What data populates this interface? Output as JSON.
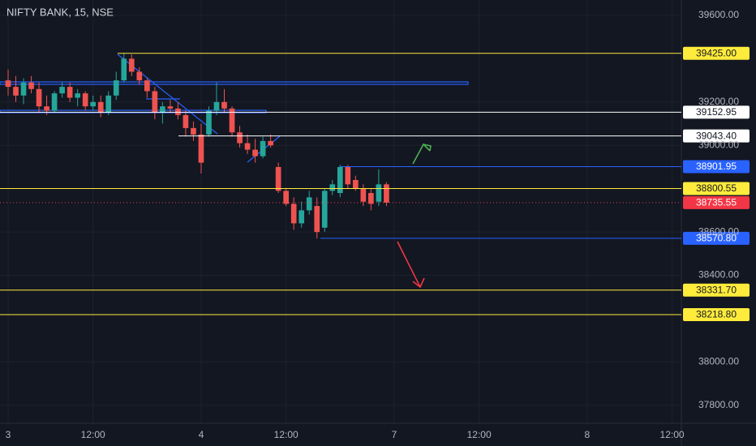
{
  "chart_data": {
    "type": "candlestick",
    "title": "NIFTY BANK, 15, NSE",
    "x": [
      0,
      1,
      2,
      3,
      4,
      5,
      6,
      7,
      8,
      9,
      10,
      11,
      12,
      13,
      14,
      15,
      16,
      17,
      18,
      19,
      20,
      21,
      22,
      23,
      24,
      25,
      26,
      27,
      28,
      29,
      30,
      31,
      32,
      33,
      34,
      35,
      36,
      37,
      38,
      39,
      40,
      41,
      42,
      43,
      44,
      45,
      46,
      47,
      48,
      49
    ],
    "open": [
      39300,
      39270,
      39230,
      39290,
      39260,
      39180,
      39160,
      39240,
      39270,
      39220,
      39240,
      39180,
      39200,
      39150,
      39230,
      39300,
      39400,
      39340,
      39300,
      39250,
      39150,
      39180,
      39170,
      39140,
      39080,
      39050,
      39050,
      39160,
      39200,
      39170,
      39060,
      39010,
      38980,
      38950,
      39020,
      38900,
      38790,
      38730,
      38640,
      38700,
      38720,
      38620,
      38790,
      38780,
      38900,
      38840,
      38800,
      38780,
      38740,
      38820
    ],
    "high": [
      39350,
      39320,
      39310,
      39320,
      39290,
      39230,
      39250,
      39290,
      39290,
      39260,
      39250,
      39230,
      39230,
      39250,
      39340,
      39425,
      39420,
      39360,
      39310,
      39270,
      39200,
      39210,
      39200,
      39160,
      39110,
      39100,
      39180,
      39290,
      39260,
      39180,
      39090,
      39050,
      39030,
      39040,
      39050,
      38920,
      38800,
      38760,
      38740,
      38790,
      38760,
      38800,
      38840,
      38910,
      38910,
      38860,
      38820,
      38800,
      38890,
      38830
    ],
    "low": [
      39230,
      39200,
      39190,
      39240,
      39150,
      39140,
      39150,
      39220,
      39200,
      39180,
      39160,
      39160,
      39130,
      39140,
      39210,
      39290,
      39320,
      39280,
      39220,
      39120,
      39100,
      39150,
      39120,
      39040,
      39020,
      38870,
      39040,
      39140,
      39150,
      39040,
      38990,
      38960,
      38920,
      38940,
      38990,
      38780,
      38720,
      38610,
      38620,
      38680,
      38570,
      38600,
      38770,
      38760,
      38800,
      38790,
      38720,
      38700,
      38720,
      38720
    ],
    "close": [
      39270,
      39230,
      39290,
      39260,
      39180,
      39160,
      39240,
      39270,
      39220,
      39240,
      39180,
      39200,
      39150,
      39230,
      39300,
      39400,
      39340,
      39300,
      39250,
      39150,
      39180,
      39170,
      39140,
      39080,
      39050,
      38920,
      39160,
      39200,
      39170,
      39060,
      39010,
      38980,
      38950,
      39020,
      39000,
      38790,
      38730,
      38640,
      38700,
      38760,
      38600,
      38790,
      38820,
      38900,
      38820,
      38800,
      38740,
      38730,
      38820,
      38735.55
    ],
    "up_color": "#26a69a",
    "down_color": "#ef5350",
    "xlim": [
      -1.05,
      87.2
    ],
    "xticks": [
      {
        "value": 0,
        "label": "3"
      },
      {
        "value": 11,
        "label": "12:00"
      },
      {
        "value": 25,
        "label": "4"
      },
      {
        "value": 36,
        "label": "12:00"
      },
      {
        "value": 50,
        "label": "7"
      },
      {
        "value": 61,
        "label": "12:00"
      },
      {
        "value": 75,
        "label": "8"
      },
      {
        "value": 86,
        "label": "12:00"
      }
    ],
    "ylim": [
      37717,
      39671
    ],
    "yticks": [
      {
        "value": 39600,
        "label": "39600.00"
      },
      {
        "value": 39200,
        "label": "39200.00"
      },
      {
        "value": 39000,
        "label": "39000.00"
      },
      {
        "value": 38600,
        "label": "38600.00"
      },
      {
        "value": 38400,
        "label": "38400.00"
      },
      {
        "value": 38000,
        "label": "38000.00"
      },
      {
        "value": 37800,
        "label": "37800.00"
      }
    ],
    "grid": true,
    "levels": [
      {
        "value": 39425,
        "label": "39425.00",
        "color": "#ffeb3b"
      },
      {
        "value": 39152.95,
        "label": "39152.95",
        "color": "#ffffff"
      },
      {
        "value": 39043.4,
        "label": "39043.40",
        "color": "#ffffff"
      },
      {
        "value": 38901.95,
        "label": "38901.95",
        "color": "#2962ff"
      },
      {
        "value": 38800.55,
        "label": "38800.55",
        "color": "#ffeb3b"
      },
      {
        "value": 38735.55,
        "label": "38735.55",
        "color": "#f23645"
      },
      {
        "value": 38570.8,
        "label": "38570.80",
        "color": "#2962ff"
      },
      {
        "value": 38331.7,
        "label": "38331.70",
        "color": "#ffeb3b"
      },
      {
        "value": 38218.8,
        "label": "38218.80",
        "color": "#ffeb3b"
      }
    ]
  }
}
